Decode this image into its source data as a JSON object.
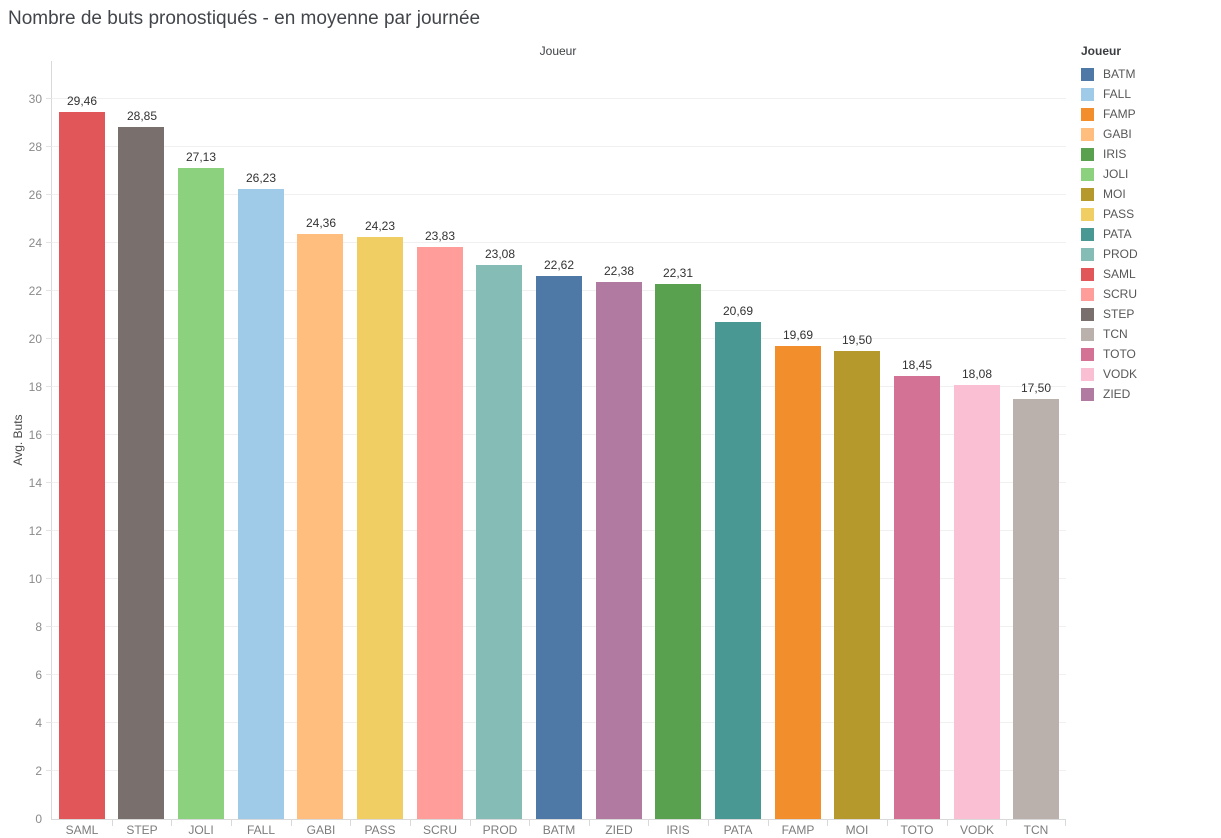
{
  "chart_data": {
    "type": "bar",
    "title": "Nombre de buts pronostiqués - en moyenne par journée",
    "top_axis_header": "Joueur",
    "xlabel": "",
    "ylabel": "Avg. Buts",
    "ylim": [
      0,
      30
    ],
    "ytick_step": 2,
    "ytick_labels": [
      "0",
      "2",
      "4",
      "6",
      "8",
      "10",
      "12",
      "14",
      "16",
      "18",
      "20",
      "22",
      "24",
      "26",
      "28",
      "30"
    ],
    "grid": true,
    "background": "#ffffff",
    "categories": [
      "SAML",
      "STEP",
      "JOLI",
      "FALL",
      "GABI",
      "PASS",
      "SCRU",
      "PROD",
      "BATM",
      "ZIED",
      "IRIS",
      "PATA",
      "FAMP",
      "MOI",
      "TOTO",
      "VODK",
      "TCN"
    ],
    "values": [
      29.46,
      28.85,
      27.13,
      26.23,
      24.36,
      24.23,
      23.83,
      23.08,
      22.62,
      22.38,
      22.31,
      20.69,
      19.69,
      19.5,
      18.45,
      18.08,
      17.5
    ],
    "value_labels": [
      "29,46",
      "28,85",
      "27,13",
      "26,23",
      "24,36",
      "24,23",
      "23,83",
      "23,08",
      "22,62",
      "22,38",
      "22,31",
      "20,69",
      "19,69",
      "19,50",
      "18,45",
      "18,08",
      "17,50"
    ],
    "bar_colors": [
      "#e15759",
      "#79706e",
      "#8cd17d",
      "#a0cbe8",
      "#ffbe7d",
      "#f1ce63",
      "#ff9d9a",
      "#86bcb6",
      "#4e79a7",
      "#b07aa1",
      "#59a14f",
      "#499894",
      "#f28e2b",
      "#b6992d",
      "#d37295",
      "#fabfd2",
      "#bab0ac"
    ],
    "legend": {
      "title": "Joueur",
      "position": "top-right",
      "entries": [
        {
          "label": "BATM",
          "color": "#4e79a7"
        },
        {
          "label": "FALL",
          "color": "#a0cbe8"
        },
        {
          "label": "FAMP",
          "color": "#f28e2b"
        },
        {
          "label": "GABI",
          "color": "#ffbe7d"
        },
        {
          "label": "IRIS",
          "color": "#59a14f"
        },
        {
          "label": "JOLI",
          "color": "#8cd17d"
        },
        {
          "label": "MOI",
          "color": "#b6992d"
        },
        {
          "label": "PASS",
          "color": "#f1ce63"
        },
        {
          "label": "PATA",
          "color": "#499894"
        },
        {
          "label": "PROD",
          "color": "#86bcb6"
        },
        {
          "label": "SAML",
          "color": "#e15759"
        },
        {
          "label": "SCRU",
          "color": "#ff9d9a"
        },
        {
          "label": "STEP",
          "color": "#79706e"
        },
        {
          "label": "TCN",
          "color": "#bab0ac"
        },
        {
          "label": "TOTO",
          "color": "#d37295"
        },
        {
          "label": "VODK",
          "color": "#fabfd2"
        },
        {
          "label": "ZIED",
          "color": "#b07aa1"
        }
      ]
    }
  }
}
